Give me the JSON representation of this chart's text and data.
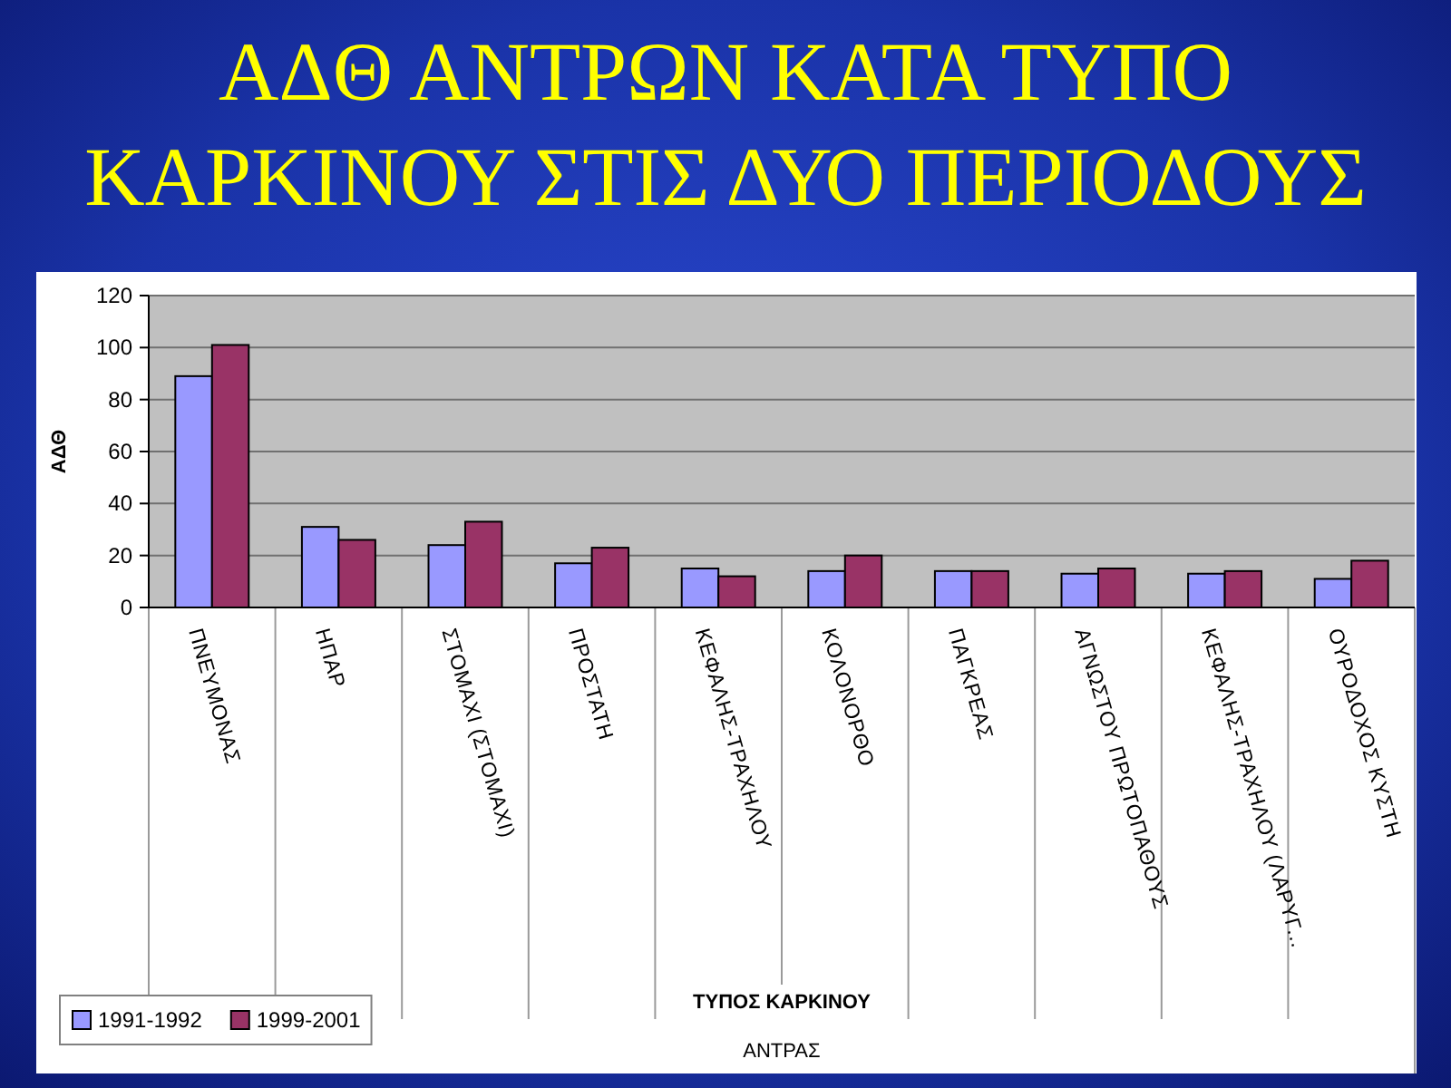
{
  "chart_data": {
    "type": "bar",
    "title": "ΑΔΘ ΑΝΤΡΩΝ ΚΑΤΑ ΤΥΠΟ ΚΑΡΚΙΝΟΥ ΣΤΙΣ ΔΥΟ ΠΕΡΙΟΔΟΥΣ",
    "xlabel": "ΤΥΠΟΣ ΚΑΡΚΙΝΟΥ",
    "ylabel": "ΑΔΘ",
    "annotations": [
      "ΑΝΤΡΑΣ"
    ],
    "categories": [
      "ΠΝΕΥΜΟΝΑΣ",
      "ΗΠΑΡ",
      "ΣΤΟΜΑΧΙ (ΣΤΟΜΑΧΙ)",
      "ΠΡΟΣΤΑΤΗ",
      "ΚΕΦΑΛΗΣ-ΤΡΑΧΗΛΟΥ",
      "ΚΟΛΟΝΟΡΘΟ",
      "ΠΑΓΚΡΕΑΣ",
      "ΑΓΝΩΣΤΟΥ ΠΡΩΤΟΠΑΘΟΥΣ",
      "ΚΕΦΑΛΗΣ-ΤΡΑΧΗΛΟΥ (ΛΑΡΥΓ...",
      "ΟΥΡΟΔΟΧΟΣ ΚΥΣΤΗ"
    ],
    "series": [
      {
        "name": "1991-1992",
        "color": "#9999ff",
        "values": [
          89,
          31,
          24,
          17,
          15,
          14,
          14,
          13,
          13,
          11
        ]
      },
      {
        "name": "1999-2001",
        "color": "#993366",
        "values": [
          101,
          26,
          33,
          23,
          12,
          20,
          14,
          15,
          14,
          18
        ]
      }
    ],
    "ylim": [
      0,
      120
    ],
    "yticks": [
      0,
      20,
      40,
      60,
      80,
      100,
      120
    ],
    "grid": "y",
    "legend": "bottom left"
  }
}
